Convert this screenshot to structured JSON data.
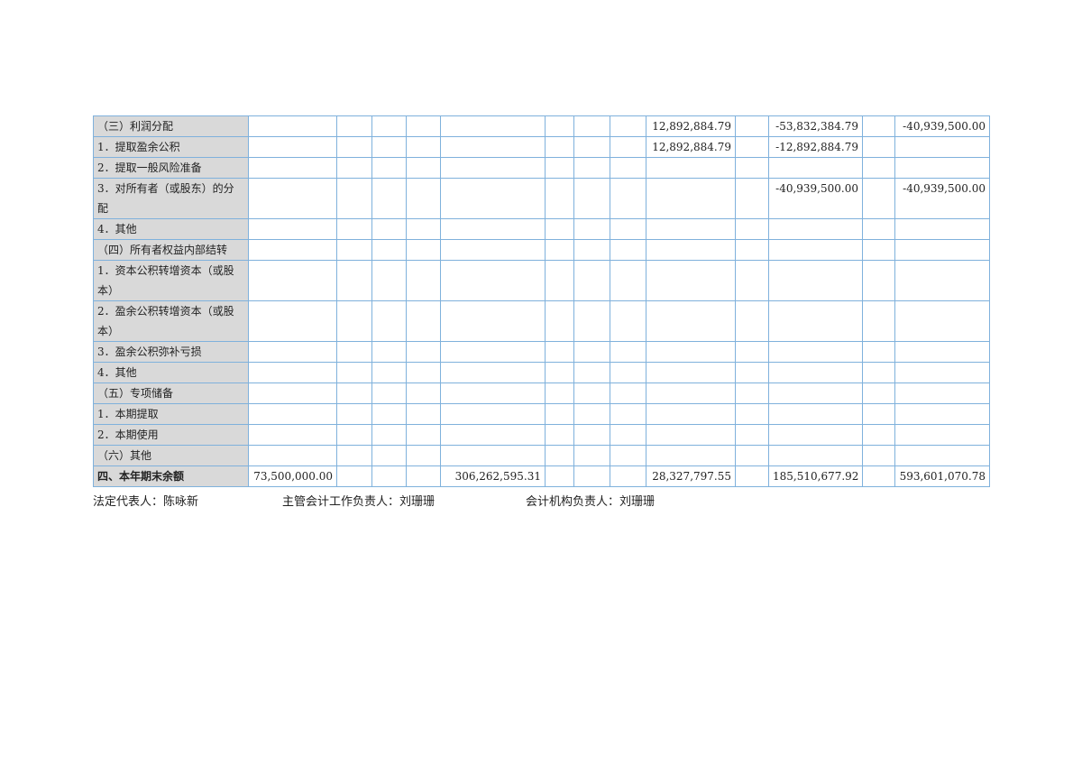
{
  "table": {
    "rows": [
      {
        "label": "（三）利润分配",
        "values": [
          "",
          "",
          "",
          "",
          "",
          "",
          "",
          "",
          "12,892,884.79",
          "",
          "-53,832,384.79",
          "",
          "-40,939,500.00"
        ]
      },
      {
        "label": "1．提取盈余公积",
        "values": [
          "",
          "",
          "",
          "",
          "",
          "",
          "",
          "",
          "12,892,884.79",
          "",
          "-12,892,884.79",
          "",
          ""
        ]
      },
      {
        "label": "2．提取一般风险准备",
        "values": [
          "",
          "",
          "",
          "",
          "",
          "",
          "",
          "",
          "",
          "",
          "",
          "",
          ""
        ]
      },
      {
        "label": "3．对所有者（或股东）的分配",
        "tall": true,
        "values": [
          "",
          "",
          "",
          "",
          "",
          "",
          "",
          "",
          "",
          "",
          "-40,939,500.00",
          "",
          "-40,939,500.00"
        ]
      },
      {
        "label": "4．其他",
        "values": [
          "",
          "",
          "",
          "",
          "",
          "",
          "",
          "",
          "",
          "",
          "",
          "",
          ""
        ]
      },
      {
        "label": "（四）所有者权益内部结转",
        "values": [
          "",
          "",
          "",
          "",
          "",
          "",
          "",
          "",
          "",
          "",
          "",
          "",
          ""
        ]
      },
      {
        "label": "1．资本公积转增资本（或股本）",
        "tall": true,
        "values": [
          "",
          "",
          "",
          "",
          "",
          "",
          "",
          "",
          "",
          "",
          "",
          "",
          ""
        ]
      },
      {
        "label": "2．盈余公积转增资本（或股本）",
        "tall": true,
        "values": [
          "",
          "",
          "",
          "",
          "",
          "",
          "",
          "",
          "",
          "",
          "",
          "",
          ""
        ]
      },
      {
        "label": "3．盈余公积弥补亏损",
        "values": [
          "",
          "",
          "",
          "",
          "",
          "",
          "",
          "",
          "",
          "",
          "",
          "",
          ""
        ]
      },
      {
        "label": "4．其他",
        "values": [
          "",
          "",
          "",
          "",
          "",
          "",
          "",
          "",
          "",
          "",
          "",
          "",
          ""
        ]
      },
      {
        "label": "（五）专项储备",
        "values": [
          "",
          "",
          "",
          "",
          "",
          "",
          "",
          "",
          "",
          "",
          "",
          "",
          ""
        ]
      },
      {
        "label": "1．本期提取",
        "values": [
          "",
          "",
          "",
          "",
          "",
          "",
          "",
          "",
          "",
          "",
          "",
          "",
          ""
        ]
      },
      {
        "label": "2．本期使用",
        "values": [
          "",
          "",
          "",
          "",
          "",
          "",
          "",
          "",
          "",
          "",
          "",
          "",
          ""
        ]
      },
      {
        "label": "（六）其他",
        "values": [
          "",
          "",
          "",
          "",
          "",
          "",
          "",
          "",
          "",
          "",
          "",
          "",
          ""
        ]
      },
      {
        "label": "四、本年期末余额",
        "bold": true,
        "values": [
          "73,500,000.00",
          "",
          "",
          "",
          "306,262,595.31",
          "",
          "",
          "",
          "28,327,797.55",
          "",
          "185,510,677.92",
          "",
          "593,601,070.78"
        ]
      }
    ]
  },
  "footer": {
    "legal_rep": "法定代表人：陈咏新",
    "accounting_head": "主管会计工作负责人：刘珊珊",
    "accounting_dept_head": "会计机构负责人：刘珊珊"
  }
}
